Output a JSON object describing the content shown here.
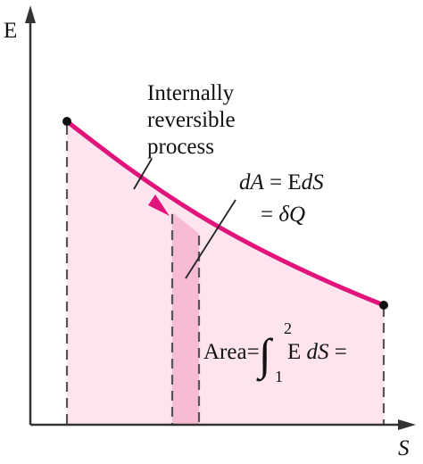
{
  "axes": {
    "y_label": "E",
    "x_label": "S"
  },
  "process_label": {
    "line1": "Internally",
    "line2": "reversible",
    "line3": "process"
  },
  "strip_label": {
    "line1_d": "d",
    "line1_A": "A",
    "line1_eq": " = E",
    "line1_d2": "d",
    "line1_S": "S",
    "line2_eq": "= ",
    "line2_delta": "δ",
    "line2_Q": "Q"
  },
  "area_label": {
    "prefix": "Area",
    "equals1": "=",
    "integral": "∫",
    "upper": "2",
    "lower": "1",
    "integrand_E": "E ",
    "integrand_dS": "dS",
    "equals2": " ="
  },
  "colors": {
    "curve": "#e0147a",
    "fill": "#fde4ee",
    "strip": "#f7bcd4",
    "dash": "#555555",
    "axis": "#333333",
    "endpoint": "#111111"
  }
}
